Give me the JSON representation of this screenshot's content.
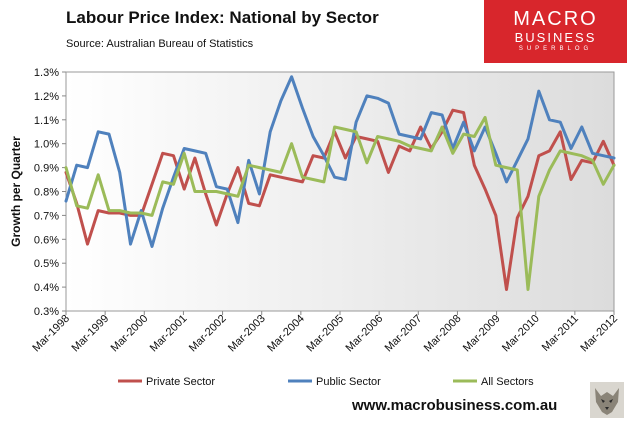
{
  "header": {
    "title": "Labour Price Index: National by Sector",
    "source": "Source: Australian Bureau of Statistics"
  },
  "logo": {
    "line1": "MACRO",
    "line2": "BUSINESS",
    "line3": "SUPERBLOG"
  },
  "footer": {
    "url": "www.macrobusiness.com.au"
  },
  "colors": {
    "private": "#c0504d",
    "public": "#4f81bd",
    "all": "#9bbb59"
  },
  "chart_data": {
    "type": "line",
    "title": "Labour Price Index: National by Sector",
    "xlabel": "",
    "ylabel": "Growth per Quarter",
    "ylim": [
      0.3,
      1.3
    ],
    "yticks": [
      "0.3%",
      "0.4%",
      "0.5%",
      "0.6%",
      "0.7%",
      "0.8%",
      "0.9%",
      "1.0%",
      "1.1%",
      "1.2%",
      "1.3%"
    ],
    "xticks": [
      "Mar-1998",
      "Mar-1999",
      "Mar-2000",
      "Mar-2001",
      "Mar-2002",
      "Mar-2003",
      "Mar-2004",
      "Mar-2005",
      "Mar-2006",
      "Mar-2007",
      "Mar-2008",
      "Mar-2009",
      "Mar-2010",
      "Mar-2011",
      "Mar-2012"
    ],
    "legend_position": "bottom",
    "series": [
      {
        "name": "Private Sector",
        "key": "private",
        "values": [
          0.88,
          0.75,
          0.58,
          0.72,
          0.71,
          0.71,
          0.7,
          0.7,
          0.83,
          0.96,
          0.95,
          0.81,
          0.94,
          0.79,
          0.66,
          0.79,
          0.9,
          0.75,
          0.74,
          0.87,
          0.86,
          0.85,
          0.84,
          0.95,
          0.94,
          1.05,
          0.94,
          1.03,
          1.02,
          1.01,
          0.88,
          0.99,
          0.97,
          1.07,
          0.98,
          1.05,
          1.14,
          1.13,
          0.91,
          0.81,
          0.7,
          0.39,
          0.69,
          0.78,
          0.95,
          0.97,
          1.05,
          0.85,
          0.93,
          0.92,
          1.01,
          0.91
        ]
      },
      {
        "name": "Public Sector",
        "key": "public",
        "values": [
          0.76,
          0.91,
          0.9,
          1.05,
          1.04,
          0.88,
          0.58,
          0.72,
          0.57,
          0.73,
          0.86,
          0.98,
          0.97,
          0.96,
          0.82,
          0.81,
          0.67,
          0.93,
          0.79,
          1.05,
          1.18,
          1.28,
          1.15,
          1.03,
          0.95,
          0.86,
          0.85,
          1.09,
          1.2,
          1.19,
          1.17,
          1.04,
          1.03,
          1.02,
          1.13,
          1.12,
          0.98,
          1.09,
          0.97,
          1.07,
          0.96,
          0.84,
          0.93,
          1.02,
          1.22,
          1.1,
          1.09,
          0.98,
          1.07,
          0.96,
          0.95,
          0.94
        ]
      },
      {
        "name": "All Sectors",
        "key": "all",
        "values": [
          0.9,
          0.74,
          0.73,
          0.87,
          0.72,
          0.72,
          0.71,
          0.71,
          0.7,
          0.84,
          0.83,
          0.96,
          0.8,
          0.8,
          0.8,
          0.79,
          0.78,
          0.91,
          0.9,
          0.89,
          0.88,
          1.0,
          0.86,
          0.85,
          0.84,
          1.07,
          1.06,
          1.05,
          0.92,
          1.03,
          1.02,
          1.01,
          0.99,
          0.98,
          0.97,
          1.07,
          0.96,
          1.04,
          1.03,
          1.11,
          0.91,
          0.9,
          0.89,
          0.39,
          0.78,
          0.89,
          0.97,
          0.96,
          0.95,
          0.93,
          0.83,
          0.91
        ]
      }
    ]
  }
}
